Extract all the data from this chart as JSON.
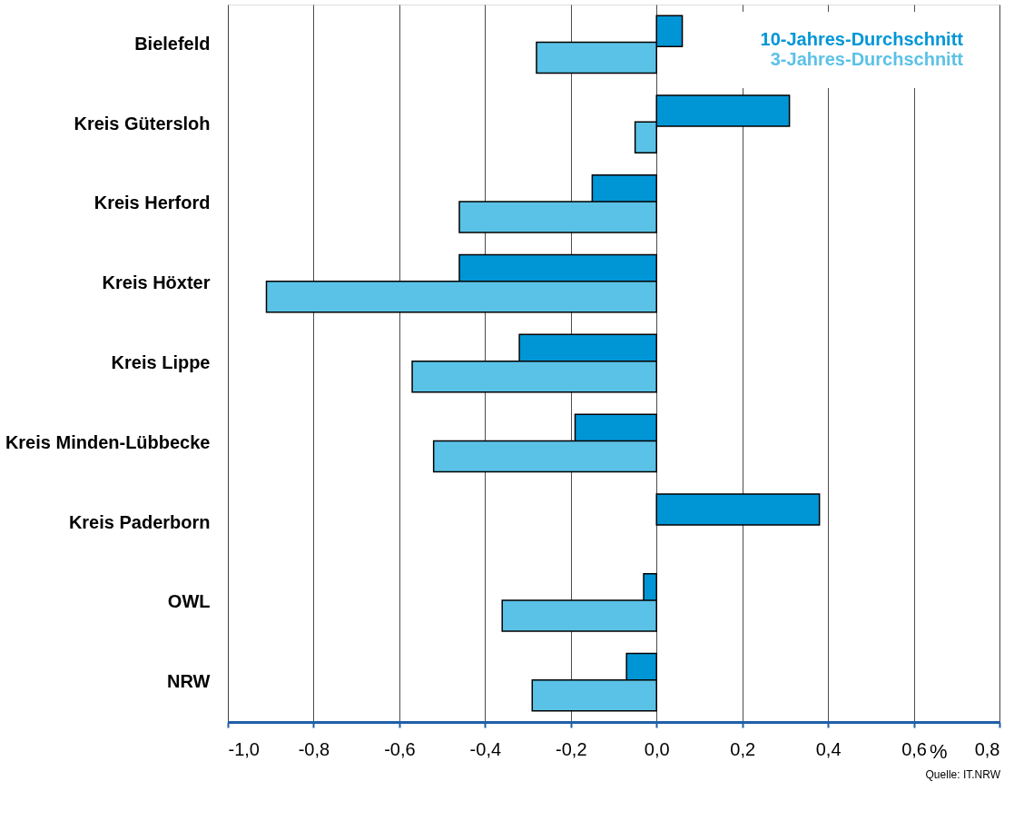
{
  "chart_data": {
    "type": "bar",
    "orientation": "horizontal",
    "categories": [
      "Bielefeld",
      "Kreis Gütersloh",
      "Kreis Herford",
      "Kreis Höxter",
      "Kreis Lippe",
      "Kreis Minden-Lübbecke",
      "Kreis Paderborn",
      "OWL",
      "NRW"
    ],
    "series": [
      {
        "name": "10-Jahres-Durchschnitt",
        "color": "#0096d6",
        "values": [
          0.06,
          0.31,
          -0.15,
          -0.46,
          -0.32,
          -0.19,
          0.38,
          -0.03,
          -0.07
        ]
      },
      {
        "name": "3-Jahres-Durchschnitt",
        "color": "#5bc2e7",
        "values": [
          -0.28,
          -0.05,
          -0.46,
          -0.91,
          -0.57,
          -0.52,
          null,
          -0.36,
          -0.29
        ]
      }
    ],
    "xlim": [
      -1.0,
      0.8
    ],
    "xticks": [
      {
        "value": -1.0,
        "label": "-1,0"
      },
      {
        "value": -0.8,
        "label": "-0,8"
      },
      {
        "value": -0.6,
        "label": "-0,6"
      },
      {
        "value": -0.4,
        "label": "-0,4"
      },
      {
        "value": -0.2,
        "label": "-0,2"
      },
      {
        "value": 0.0,
        "label": "0,0"
      },
      {
        "value": 0.2,
        "label": "0,2"
      },
      {
        "value": 0.4,
        "label": "0,4"
      },
      {
        "value": 0.6,
        "label": "0,6"
      },
      {
        "value": 0.8,
        "label": "0,8"
      }
    ],
    "xlabel": "%",
    "grid": "x",
    "legend": "top right",
    "annotations": [
      "Quelle: IT.NRW"
    ]
  }
}
